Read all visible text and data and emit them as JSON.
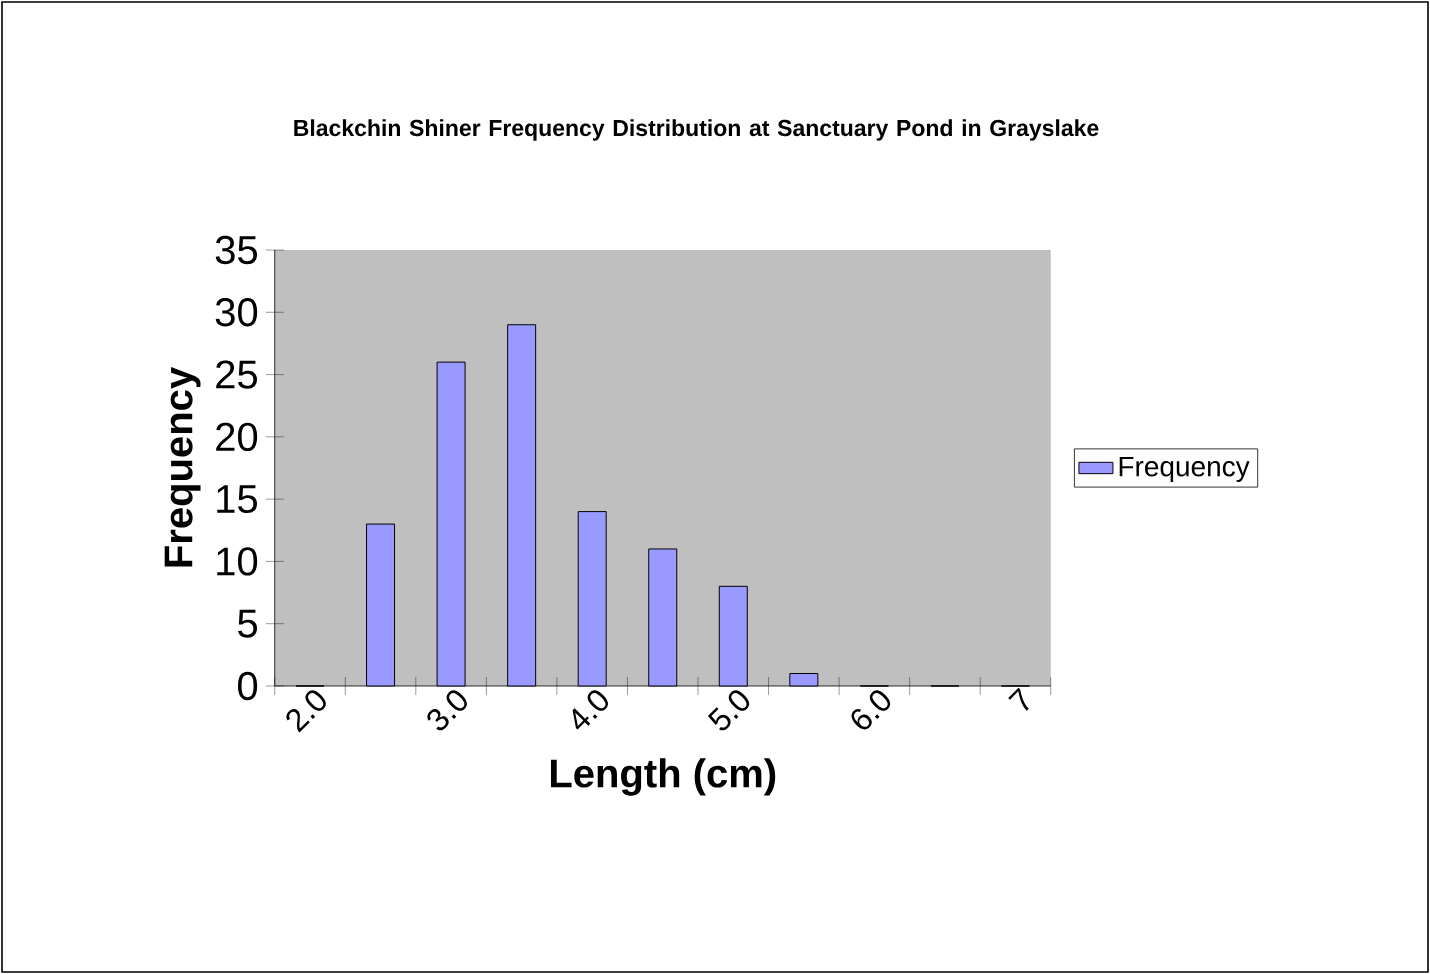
{
  "chart_data": {
    "type": "bar",
    "title": "Blackchin Shiner Frequency Distribution at Sanctuary Pond in Grayslake",
    "xlabel": "Length (cm)",
    "ylabel": "Frequency",
    "categories": [
      "2.0",
      null,
      "3.0",
      null,
      "4.0",
      null,
      "5.0",
      null,
      "6.0",
      null,
      "7"
    ],
    "series": [
      {
        "name": "Frequency",
        "color": "#9999ff",
        "values": [
          0,
          13,
          26,
          29,
          14,
          11,
          8,
          1,
          0,
          0,
          0
        ]
      }
    ],
    "ylim": [
      0,
      35
    ],
    "yticks": [
      0,
      5,
      10,
      15,
      20,
      25,
      30,
      35
    ],
    "legend": "right"
  }
}
